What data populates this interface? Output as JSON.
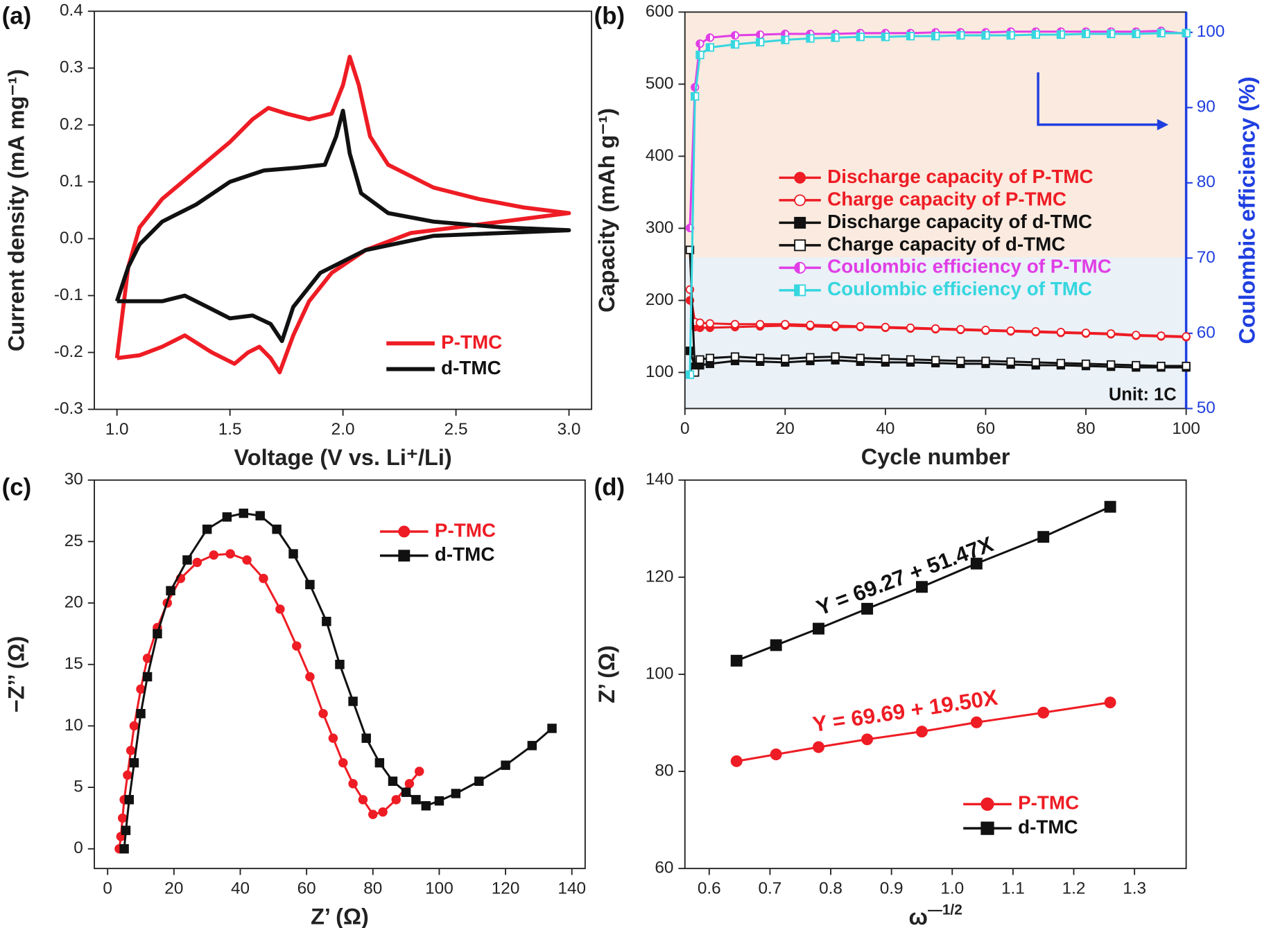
{
  "chart_data": [
    {
      "type": "line",
      "panel": "(a)",
      "x_label": "Voltage (V vs. Li⁺/Li)",
      "y_label": "Current density (mA mg⁻¹)",
      "xlim": [
        0.9,
        3.1
      ],
      "ylim": [
        -0.3,
        0.4
      ],
      "xticks": [
        {
          "value": 1,
          "label": "1.0"
        },
        {
          "value": 1.5,
          "label": "1.5"
        },
        {
          "value": 2,
          "label": "2.0"
        },
        {
          "value": 2.5,
          "label": "2.5"
        },
        {
          "value": 3,
          "label": "3.0"
        }
      ],
      "yticks": [
        -0.3,
        -0.2,
        -0.1,
        {
          "value": 0,
          "label": "0.0"
        },
        0.1,
        0.2,
        0.3,
        0.4
      ],
      "legend": "lower right",
      "series": [
        {
          "name": "P-TMC",
          "color": "#ee1c24",
          "marker": "none",
          "x": [
            1.0,
            1.05,
            1.1,
            1.2,
            1.35,
            1.5,
            1.6,
            1.67,
            1.75,
            1.85,
            1.95,
            2.0,
            2.03,
            2.07,
            2.12,
            2.2,
            2.4,
            2.6,
            2.8,
            3.0,
            2.9,
            2.6,
            2.3,
            2.1,
            1.95,
            1.85,
            1.78,
            1.72,
            1.68,
            1.63,
            1.58,
            1.52,
            1.42,
            1.3,
            1.2,
            1.1,
            1.0
          ],
          "values": [
            -0.21,
            -0.05,
            0.02,
            0.07,
            0.12,
            0.17,
            0.21,
            0.23,
            0.22,
            0.21,
            0.22,
            0.27,
            0.32,
            0.27,
            0.18,
            0.13,
            0.09,
            0.07,
            0.055,
            0.045,
            0.04,
            0.025,
            0.01,
            -0.02,
            -0.06,
            -0.11,
            -0.17,
            -0.235,
            -0.21,
            -0.19,
            -0.2,
            -0.22,
            -0.2,
            -0.17,
            -0.19,
            -0.205,
            -0.21
          ]
        },
        {
          "name": "d-TMC",
          "color": "#111111",
          "marker": "none",
          "x": [
            1.0,
            1.05,
            1.1,
            1.2,
            1.35,
            1.5,
            1.65,
            1.8,
            1.92,
            1.97,
            2.0,
            2.03,
            2.08,
            2.2,
            2.4,
            2.7,
            3.0,
            2.7,
            2.4,
            2.1,
            1.9,
            1.78,
            1.73,
            1.68,
            1.6,
            1.5,
            1.4,
            1.3,
            1.2,
            1.1,
            1.0
          ],
          "values": [
            -0.11,
            -0.05,
            -0.01,
            0.03,
            0.06,
            0.1,
            0.12,
            0.125,
            0.13,
            0.18,
            0.225,
            0.15,
            0.08,
            0.045,
            0.03,
            0.02,
            0.015,
            0.01,
            0.005,
            -0.02,
            -0.06,
            -0.12,
            -0.18,
            -0.15,
            -0.135,
            -0.14,
            -0.12,
            -0.1,
            -0.11,
            -0.11,
            -0.11
          ]
        }
      ]
    },
    {
      "type": "line",
      "panel": "(b)",
      "x_label": "Cycle number",
      "y_label": "Capacity (mAh g⁻¹)",
      "y2_label": "Coulombic efficiency (%)",
      "xlim": [
        0,
        100
      ],
      "ylim": [
        50,
        600
      ],
      "y2lim": [
        50,
        102.7
      ],
      "xticks": [
        0,
        20,
        40,
        60,
        80,
        100
      ],
      "yticks": [
        100,
        200,
        300,
        400,
        500,
        600
      ],
      "y2ticks": [
        50,
        60,
        70,
        80,
        90,
        100
      ],
      "legend": "center left",
      "annotations": [
        "Unit: 1C"
      ],
      "series": [
        {
          "name": "Discharge capacity of P-TMC",
          "color": "#ee1c24",
          "marker": "circle",
          "x": [
            1,
            2,
            3,
            5,
            10,
            15,
            20,
            25,
            30,
            35,
            40,
            45,
            50,
            55,
            60,
            65,
            70,
            75,
            80,
            85,
            90,
            95,
            100
          ],
          "values": [
            200,
            163,
            162,
            162,
            163,
            164,
            165,
            164,
            163,
            163,
            162,
            161,
            160,
            159,
            158,
            157,
            156,
            155,
            154,
            153,
            151,
            150,
            149
          ]
        },
        {
          "name": "Charge capacity of P-TMC",
          "color": "#ee1c24",
          "marker": "circle-open",
          "x": [
            1,
            2,
            3,
            5,
            10,
            15,
            20,
            25,
            30,
            35,
            40,
            45,
            50,
            55,
            60,
            65,
            70,
            75,
            80,
            85,
            90,
            95,
            100
          ],
          "values": [
            215,
            170,
            169,
            168,
            167,
            167,
            167,
            166,
            165,
            164,
            163,
            162,
            161,
            160,
            159,
            158,
            157,
            156,
            155,
            154,
            152,
            151,
            150
          ]
        },
        {
          "name": "Discharge capacity of d-TMC",
          "color": "#111111",
          "marker": "square",
          "x": [
            1,
            2,
            3,
            5,
            10,
            15,
            20,
            25,
            30,
            35,
            40,
            45,
            50,
            55,
            60,
            65,
            70,
            75,
            80,
            85,
            90,
            95,
            100
          ],
          "values": [
            130,
            108,
            110,
            112,
            116,
            115,
            114,
            116,
            117,
            115,
            114,
            114,
            113,
            112,
            112,
            111,
            110,
            110,
            109,
            108,
            107,
            107,
            107
          ]
        },
        {
          "name": "Charge capacity of d-TMC",
          "color": "#111111",
          "marker": "square-open",
          "x": [
            1,
            2,
            3,
            5,
            10,
            15,
            20,
            25,
            30,
            35,
            40,
            45,
            50,
            55,
            60,
            65,
            70,
            75,
            80,
            85,
            90,
            95,
            100
          ],
          "values": [
            270,
            100,
            118,
            120,
            122,
            120,
            119,
            121,
            122,
            120,
            119,
            118,
            117,
            116,
            116,
            115,
            114,
            113,
            112,
            111,
            110,
            109,
            109
          ]
        },
        {
          "name": "Coulombic efficiency of P-TMC",
          "color": "#e03ee6",
          "marker": "circle-half",
          "axis": "y2",
          "x": [
            1,
            2,
            3,
            5,
            10,
            15,
            20,
            25,
            30,
            35,
            40,
            45,
            50,
            55,
            60,
            65,
            70,
            75,
            80,
            85,
            90,
            95,
            100
          ],
          "values": [
            74,
            92.7,
            98.5,
            99.3,
            99.6,
            99.7,
            99.8,
            99.8,
            99.8,
            99.9,
            99.9,
            99.9,
            100,
            100,
            100,
            100.1,
            100.1,
            100.1,
            100.1,
            100.1,
            100.1,
            100.2,
            99.8
          ]
        },
        {
          "name": "Coulombic efficiency of TMC",
          "color": "#36d6df",
          "marker": "square-half",
          "axis": "y2",
          "x": [
            1,
            2,
            3,
            5,
            10,
            15,
            20,
            25,
            30,
            35,
            40,
            45,
            50,
            55,
            60,
            65,
            70,
            75,
            80,
            85,
            90,
            95,
            100
          ],
          "values": [
            54.5,
            91.5,
            97,
            98,
            98.4,
            98.7,
            99,
            99.2,
            99.3,
            99.4,
            99.4,
            99.5,
            99.5,
            99.6,
            99.6,
            99.6,
            99.7,
            99.7,
            99.8,
            99.8,
            99.8,
            99.9,
            99.9
          ]
        }
      ]
    },
    {
      "type": "line",
      "panel": "(c)",
      "x_label": "Z’ (Ω)",
      "y_label": "−Z’’ (Ω)",
      "xlim": [
        -4,
        144
      ],
      "ylim": [
        -1.6,
        30
      ],
      "xticks": [
        0,
        20,
        40,
        60,
        80,
        100,
        120,
        140
      ],
      "yticks": [
        0,
        5,
        10,
        15,
        20,
        25,
        30
      ],
      "legend": "upper right",
      "series": [
        {
          "name": "P-TMC",
          "color": "#ee1c24",
          "marker": "circle",
          "x": [
            3.5,
            4,
            4.5,
            5,
            6,
            7,
            8,
            10,
            12,
            15,
            18,
            22,
            27,
            32,
            37,
            42,
            47,
            52,
            57,
            61,
            65,
            68,
            71,
            74,
            77,
            80,
            83,
            87,
            91,
            94
          ],
          "values": [
            0,
            1,
            2.5,
            4,
            6,
            8,
            10,
            13,
            15.5,
            18,
            20,
            22,
            23.3,
            23.9,
            24,
            23.5,
            22,
            19.5,
            16.5,
            14,
            11,
            9,
            7,
            5.3,
            4,
            2.8,
            3,
            4,
            5.3,
            6.3
          ]
        },
        {
          "name": "d-TMC",
          "color": "#111111",
          "marker": "square",
          "x": [
            5,
            5.5,
            6.5,
            8,
            10,
            12,
            15,
            19,
            24,
            30,
            36,
            41,
            46,
            51,
            56,
            61,
            66,
            70,
            74,
            78,
            82,
            86,
            90,
            93,
            96,
            100,
            105,
            112,
            120,
            128,
            134
          ],
          "values": [
            0,
            1.5,
            4,
            7,
            11,
            14,
            17.5,
            21,
            23.5,
            26,
            27,
            27.3,
            27.1,
            26,
            24,
            21.5,
            18.5,
            15,
            12,
            9,
            7,
            5.5,
            4.6,
            4,
            3.5,
            3.9,
            4.5,
            5.5,
            6.8,
            8.4,
            9.8
          ]
        }
      ]
    },
    {
      "type": "line",
      "panel": "(d)",
      "x_label": [
        "ω",
        "—1/2"
      ],
      "y_label": "Z’ (Ω)",
      "xlim": [
        0.56,
        1.385
      ],
      "ylim": [
        60,
        140
      ],
      "xticks": [
        0.6,
        0.7,
        0.8,
        0.9,
        {
          "value": 1,
          "label": "1.0"
        },
        1.1,
        1.2,
        1.3
      ],
      "yticks": [
        60,
        80,
        100,
        120,
        140
      ],
      "legend": "lower right",
      "annotations": [
        "Y = 69.27 + 51.47X",
        "Y = 69.69 + 19.50X"
      ],
      "series": [
        {
          "name": "P-TMC",
          "color": "#ee1c24",
          "marker": "circle",
          "x": [
            0.645,
            0.71,
            0.78,
            0.86,
            0.95,
            1.04,
            1.15,
            1.26
          ],
          "values": [
            82.1,
            83.5,
            85,
            86.6,
            88.2,
            90.1,
            92.1,
            94.2
          ]
        },
        {
          "name": "d-TMC",
          "color": "#111111",
          "marker": "square",
          "x": [
            0.645,
            0.71,
            0.78,
            0.86,
            0.95,
            1.04,
            1.15,
            1.26
          ],
          "values": [
            102.8,
            106,
            109.4,
            113.5,
            118,
            122.8,
            128.3,
            134.5
          ]
        }
      ]
    }
  ]
}
